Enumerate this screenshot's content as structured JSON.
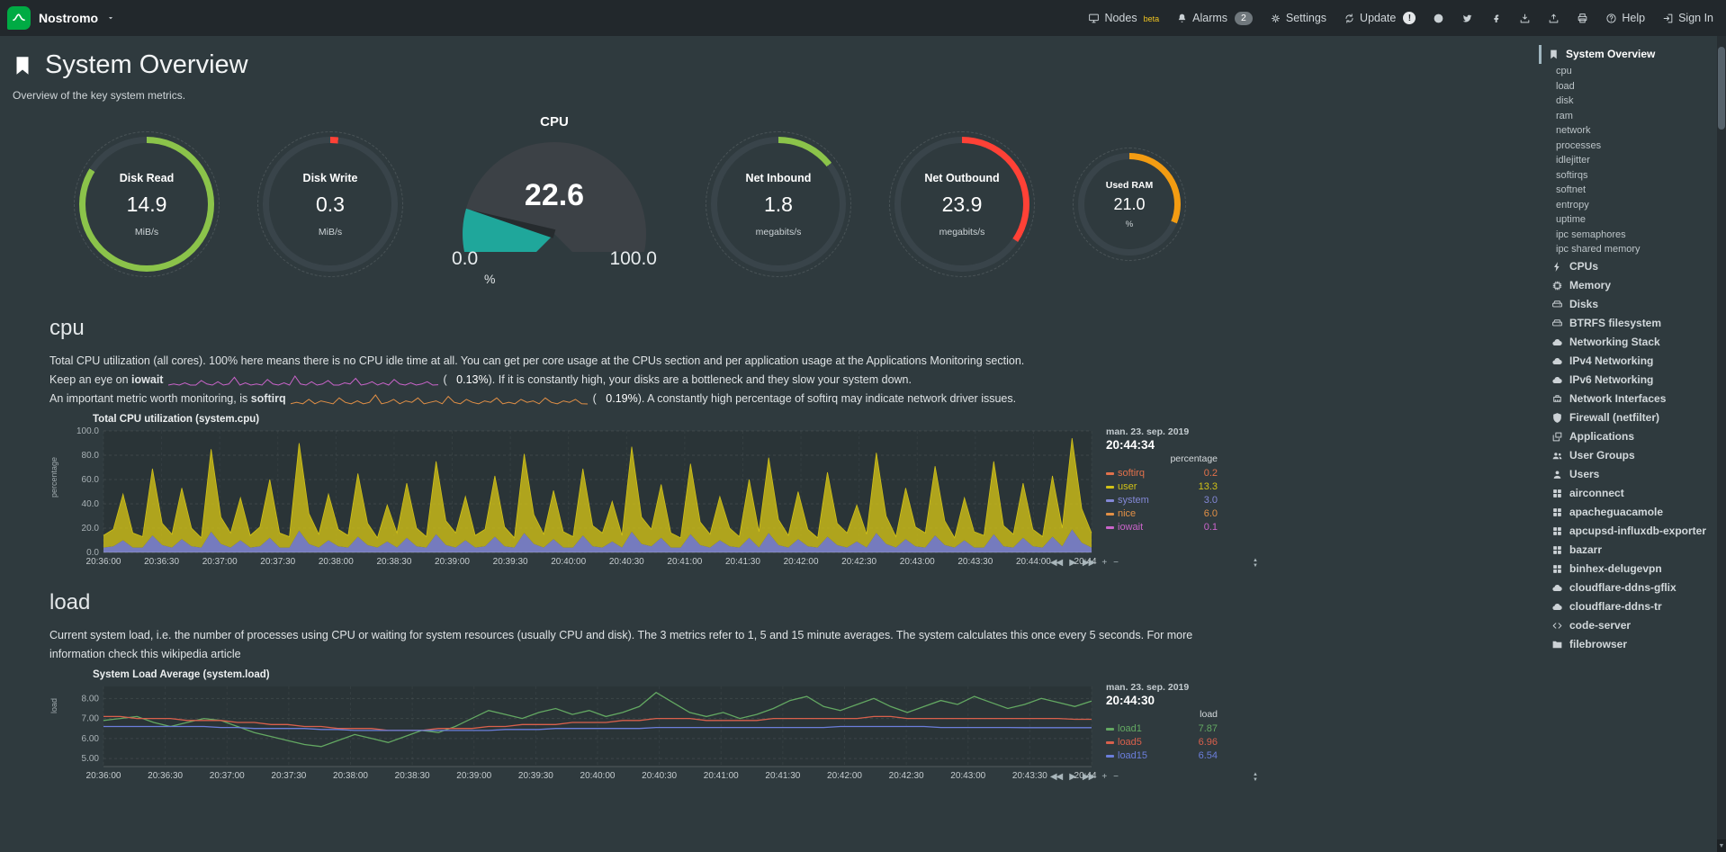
{
  "topbar": {
    "node_name": "Nostromo",
    "items": [
      {
        "name": "nodes",
        "label": "Nodes",
        "icon": "monitor",
        "badge": "beta",
        "badge_style": "beta"
      },
      {
        "name": "alarms",
        "label": "Alarms",
        "icon": "bell",
        "badge": "2",
        "badge_style": "count"
      },
      {
        "name": "settings",
        "label": "Settings",
        "icon": "gear"
      },
      {
        "name": "update",
        "label": "Update",
        "icon": "refresh",
        "badge": "!",
        "badge_style": "round"
      },
      {
        "name": "github",
        "icon": "github"
      },
      {
        "name": "twitter",
        "icon": "twitter"
      },
      {
        "name": "facebook",
        "icon": "facebook"
      },
      {
        "name": "download",
        "icon": "download"
      },
      {
        "name": "upload",
        "icon": "upload"
      },
      {
        "name": "print",
        "icon": "print"
      },
      {
        "name": "help",
        "label": "Help",
        "icon": "help"
      },
      {
        "name": "signin",
        "label": "Sign In",
        "icon": "signin"
      }
    ]
  },
  "page": {
    "title": "System Overview",
    "subtitle": "Overview of the key system metrics."
  },
  "gauges": [
    {
      "type": "ring",
      "title": "Disk Read",
      "value": "14.9",
      "unit": "MiB/s",
      "color": "#8BC34A",
      "arc_deg": 302,
      "size": 150
    },
    {
      "type": "ring",
      "title": "Disk Write",
      "value": "0.3",
      "unit": "MiB/s",
      "color": "#FF4136",
      "arc_deg": 7,
      "size": 150
    },
    {
      "type": "meter",
      "title": "CPU",
      "value": "22.6",
      "min": "0.0",
      "max": "100.0",
      "unit": "%",
      "color": "#1FA79B",
      "fraction": 0.226
    },
    {
      "type": "ring",
      "title": "Net Inbound",
      "value": "1.8",
      "unit": "megabits/s",
      "color": "#8BC34A",
      "arc_deg": 52,
      "size": 150
    },
    {
      "type": "ring",
      "title": "Net Outbound",
      "value": "23.9",
      "unit": "megabits/s",
      "color": "#FF4136",
      "arc_deg": 124,
      "size": 150
    },
    {
      "type": "ring",
      "title": "Used RAM",
      "value": "21.0",
      "unit": "%",
      "color": "#F39C12",
      "arc_deg": 112,
      "size": 114
    }
  ],
  "cpu_section": {
    "heading": "cpu",
    "desc1": "Total CPU utilization (all cores). 100% here means there is no CPU idle time at all. You can get per core usage at the CPUs section and per application usage at the Applications Monitoring section.",
    "iowait": {
      "pre": "Keep an eye on ",
      "term": "iowait",
      "paren_open": "(",
      "value": "0.13%",
      "paren_close": ")",
      "post": ". If it is constantly high, your disks are a bottleneck and they slow your system down.",
      "color": "#CA64CA",
      "spark": [
        0.1,
        0.2,
        0.1,
        0.3,
        0.1,
        0.1,
        0.5,
        0.2,
        0.1,
        0.4,
        0.1,
        0.2,
        0.8,
        0.1,
        0.3,
        0.1,
        0.2,
        0.1,
        0.6,
        0.2,
        0.1,
        0.3,
        0.1,
        0.9,
        0.2,
        0.1,
        0.4,
        0.1,
        0.2,
        0.5,
        0.1,
        0.1,
        0.3,
        0.2,
        0.7,
        0.1,
        0.2,
        0.4,
        0.1,
        0.3,
        0.1,
        0.6,
        0.2,
        0.1,
        0.3,
        0.1,
        0.2,
        0.4,
        0.1,
        0.13
      ]
    },
    "softirq": {
      "pre": "An important metric worth monitoring, is ",
      "term": "softirq",
      "paren_open": "(",
      "value": "0.19%",
      "paren_close": ")",
      "post": ". A constantly high percentage of softirq may indicate network driver issues.",
      "color": "#E39046",
      "spark": [
        0.2,
        0.3,
        0.2,
        0.5,
        0.2,
        0.4,
        0.3,
        0.2,
        0.6,
        0.3,
        0.2,
        0.4,
        0.2,
        0.3,
        0.8,
        0.2,
        0.3,
        0.5,
        0.2,
        0.4,
        0.3,
        0.6,
        0.2,
        0.3,
        0.4,
        0.2,
        0.7,
        0.3,
        0.2,
        0.5,
        0.3,
        0.2,
        0.4,
        0.3,
        0.6,
        0.2,
        0.3,
        0.2,
        0.5,
        0.3,
        0.4,
        0.2,
        0.6,
        0.3,
        0.2,
        0.4,
        0.3,
        0.5,
        0.2,
        0.19
      ]
    }
  },
  "cpu_chart": {
    "type": "area-stacked",
    "title": "Total CPU utilization (system.cpu)",
    "ylabel": "percentage",
    "unit": "percentage",
    "date": "man. 23. sep. 2019",
    "time": "20:44:34",
    "ylim": [
      0,
      100
    ],
    "yticks": [
      0,
      20,
      40,
      60,
      80,
      100
    ],
    "ytick_labels": [
      "0.0",
      "20.0",
      "40.0",
      "60.0",
      "80.0",
      "100.0"
    ],
    "xticks": [
      "20:36:00",
      "20:36:30",
      "20:37:00",
      "20:37:30",
      "20:38:00",
      "20:38:30",
      "20:39:00",
      "20:39:30",
      "20:40:00",
      "20:40:30",
      "20:41:00",
      "20:41:30",
      "20:42:00",
      "20:42:30",
      "20:43:00",
      "20:43:30",
      "20:44:00",
      "20:44:30"
    ],
    "legend": [
      {
        "name": "softirq",
        "value": "0.2",
        "color": "#E2714B"
      },
      {
        "name": "user",
        "value": "13.3",
        "color": "#D1C117"
      },
      {
        "name": "system",
        "value": "3.0",
        "color": "#8388D6"
      },
      {
        "name": "nice",
        "value": "6.0",
        "color": "#E39046"
      },
      {
        "name": "iowait",
        "value": "0.1",
        "color": "#CA64CA"
      }
    ],
    "series": [
      {
        "name": "system",
        "color": "#8388D6",
        "values": [
          4,
          5,
          10,
          4,
          4,
          14,
          6,
          4,
          11,
          5,
          4,
          17,
          7,
          4,
          10,
          4,
          5,
          12,
          4,
          4,
          18,
          7,
          4,
          10,
          5,
          4,
          13,
          6,
          4,
          9,
          4,
          12,
          5,
          4,
          15,
          6,
          4,
          10,
          4,
          5,
          13,
          5,
          4,
          16,
          7,
          4,
          11,
          4,
          4,
          14,
          5,
          4,
          9,
          4,
          17,
          7,
          5,
          12,
          4,
          4,
          15,
          6,
          4,
          10,
          5,
          4,
          12,
          4,
          16,
          6,
          4,
          11,
          5,
          4,
          13,
          6,
          4,
          9,
          4,
          16,
          7,
          4,
          11,
          5,
          4,
          14,
          6,
          4,
          10,
          4,
          4,
          15,
          5,
          4,
          12,
          5,
          4,
          13,
          5,
          19,
          8,
          4
        ]
      },
      {
        "name": "user",
        "color": "#D1C117",
        "values": [
          10,
          14,
          38,
          12,
          9,
          55,
          18,
          11,
          42,
          15,
          8,
          68,
          22,
          12,
          35,
          10,
          16,
          48,
          12,
          9,
          72,
          25,
          11,
          38,
          14,
          10,
          52,
          18,
          8,
          30,
          12,
          45,
          15,
          9,
          60,
          20,
          12,
          36,
          10,
          14,
          50,
          16,
          8,
          65,
          24,
          11,
          40,
          13,
          9,
          55,
          17,
          12,
          33,
          10,
          70,
          22,
          14,
          44,
          12,
          8,
          58,
          19,
          11,
          36,
          15,
          9,
          48,
          13,
          62,
          21,
          10,
          39,
          14,
          8,
          53,
          18,
          12,
          30,
          11,
          66,
          23,
          9,
          42,
          16,
          12,
          57,
          20,
          8,
          35,
          13,
          10,
          60,
          17,
          11,
          45,
          14,
          9,
          50,
          15,
          75,
          28,
          12
        ]
      }
    ]
  },
  "load_section": {
    "heading": "load",
    "desc_pre": "Current system load, i.e. the number of processes using CPU or waiting for system resources (usually CPU and disk). The 3 metrics refer to 1, 5 and 15 minute averages. The system calculates this once every 5 seconds. For more information check this ",
    "desc_link": "wikipedia article"
  },
  "load_chart": {
    "type": "line",
    "title": "System Load Average (system.load)",
    "ylabel": "load",
    "unit": "load",
    "date": "man. 23. sep. 2019",
    "time": "20:44:30",
    "ylim": [
      4.6,
      8.6
    ],
    "yticks": [
      5,
      6,
      7,
      8
    ],
    "ytick_labels": [
      "5.00",
      "6.00",
      "7.00",
      "8.00"
    ],
    "xticks": [
      "20:36:00",
      "20:36:30",
      "20:37:00",
      "20:37:30",
      "20:38:00",
      "20:38:30",
      "20:39:00",
      "20:39:30",
      "20:40:00",
      "20:40:30",
      "20:41:00",
      "20:41:30",
      "20:42:00",
      "20:42:30",
      "20:43:00",
      "20:43:30",
      "20:44:00"
    ],
    "legend": [
      {
        "name": "load1",
        "value": "7.87",
        "color": "#63A862"
      },
      {
        "name": "load5",
        "value": "6.96",
        "color": "#D9604C"
      },
      {
        "name": "load15",
        "value": "6.54",
        "color": "#6B7EDB"
      }
    ],
    "series": [
      {
        "name": "load1",
        "color": "#63A862",
        "values": [
          6.9,
          7.0,
          7.1,
          6.8,
          6.6,
          6.8,
          7.0,
          6.9,
          6.6,
          6.3,
          6.1,
          5.9,
          5.7,
          5.6,
          5.9,
          6.2,
          6.0,
          5.8,
          6.1,
          6.4,
          6.3,
          6.6,
          7.0,
          7.4,
          7.2,
          7.0,
          7.3,
          7.5,
          7.2,
          7.4,
          7.1,
          7.3,
          7.6,
          8.3,
          7.8,
          7.3,
          7.1,
          7.3,
          7.0,
          7.2,
          7.5,
          7.9,
          8.1,
          7.6,
          7.4,
          7.7,
          8.0,
          7.6,
          7.3,
          7.6,
          7.9,
          7.7,
          8.1,
          7.8,
          7.5,
          7.7,
          8.0,
          7.8,
          7.6,
          7.87
        ]
      },
      {
        "name": "load5",
        "color": "#D9604C",
        "values": [
          7.1,
          7.1,
          7.0,
          7.0,
          7.0,
          6.9,
          6.9,
          6.9,
          6.8,
          6.8,
          6.7,
          6.7,
          6.6,
          6.6,
          6.5,
          6.5,
          6.5,
          6.4,
          6.4,
          6.4,
          6.5,
          6.5,
          6.5,
          6.6,
          6.6,
          6.7,
          6.7,
          6.7,
          6.8,
          6.8,
          6.8,
          6.9,
          6.9,
          7.0,
          7.0,
          7.0,
          6.9,
          6.9,
          6.9,
          6.9,
          7.0,
          7.0,
          7.0,
          7.0,
          7.0,
          7.0,
          7.1,
          7.1,
          7.0,
          7.0,
          7.0,
          7.0,
          7.0,
          7.0,
          7.0,
          7.0,
          7.0,
          7.0,
          6.96,
          6.96
        ]
      },
      {
        "name": "load15",
        "color": "#6B7EDB",
        "values": [
          6.6,
          6.6,
          6.6,
          6.6,
          6.6,
          6.6,
          6.6,
          6.55,
          6.55,
          6.5,
          6.5,
          6.5,
          6.5,
          6.45,
          6.45,
          6.4,
          6.4,
          6.4,
          6.4,
          6.4,
          6.4,
          6.4,
          6.4,
          6.4,
          6.45,
          6.45,
          6.45,
          6.5,
          6.5,
          6.5,
          6.5,
          6.5,
          6.5,
          6.55,
          6.55,
          6.55,
          6.55,
          6.55,
          6.55,
          6.55,
          6.55,
          6.55,
          6.55,
          6.55,
          6.6,
          6.6,
          6.6,
          6.6,
          6.6,
          6.6,
          6.55,
          6.55,
          6.55,
          6.55,
          6.55,
          6.54,
          6.54,
          6.54,
          6.54,
          6.54
        ]
      }
    ]
  },
  "chart_toolbar": {
    "buttons": [
      {
        "name": "pan-backward",
        "glyph": "◀◀"
      },
      {
        "name": "play",
        "glyph": "▶"
      },
      {
        "name": "pan-forward",
        "glyph": "▶▶"
      },
      {
        "name": "zoom-in",
        "glyph": "+"
      },
      {
        "name": "zoom-out",
        "glyph": "−"
      }
    ],
    "resize_glyphs": [
      "▲",
      "▼"
    ]
  },
  "sidebar": {
    "items": [
      {
        "label": "System Overview",
        "icon": "bookmark",
        "active": true
      },
      {
        "label": "cpu",
        "sub": true
      },
      {
        "label": "load",
        "sub": true
      },
      {
        "label": "disk",
        "sub": true
      },
      {
        "label": "ram",
        "sub": true
      },
      {
        "label": "network",
        "sub": true
      },
      {
        "label": "processes",
        "sub": true
      },
      {
        "label": "idlejitter",
        "sub": true
      },
      {
        "label": "softirqs",
        "sub": true
      },
      {
        "label": "softnet",
        "sub": true
      },
      {
        "label": "entropy",
        "sub": true
      },
      {
        "label": "uptime",
        "sub": true
      },
      {
        "label": "ipc semaphores",
        "sub": true
      },
      {
        "label": "ipc shared memory",
        "sub": true
      },
      {
        "label": "CPUs",
        "icon": "bolt"
      },
      {
        "label": "Memory",
        "icon": "chip"
      },
      {
        "label": "Disks",
        "icon": "hdd"
      },
      {
        "label": "BTRFS filesystem",
        "icon": "hdd"
      },
      {
        "label": "Networking Stack",
        "icon": "cloud"
      },
      {
        "label": "IPv4 Networking",
        "icon": "cloud"
      },
      {
        "label": "IPv6 Networking",
        "icon": "cloud"
      },
      {
        "label": "Network Interfaces",
        "icon": "port"
      },
      {
        "label": "Firewall (netfilter)",
        "icon": "shield"
      },
      {
        "label": "Applications",
        "icon": "windows"
      },
      {
        "label": "User Groups",
        "icon": "users"
      },
      {
        "label": "Users",
        "icon": "user"
      },
      {
        "label": "airconnect",
        "icon": "grid"
      },
      {
        "label": "apacheguacamole",
        "icon": "grid"
      },
      {
        "label": "apcupsd-influxdb-exporter",
        "icon": "grid"
      },
      {
        "label": "bazarr",
        "icon": "grid"
      },
      {
        "label": "binhex-delugevpn",
        "icon": "grid"
      },
      {
        "label": "cloudflare-ddns-gflix",
        "icon": "cloud"
      },
      {
        "label": "cloudflare-ddns-tr",
        "icon": "cloud"
      },
      {
        "label": "code-server",
        "icon": "code"
      },
      {
        "label": "filebrowser",
        "icon": "folder"
      }
    ]
  },
  "colors": {
    "brand_green": "#00AB44",
    "beta_yellow": "#F0C420",
    "gauge_green": "#8BC34A",
    "gauge_red": "#FF4136",
    "gauge_orange": "#F39C12",
    "gauge_teal": "#1FA79B"
  }
}
